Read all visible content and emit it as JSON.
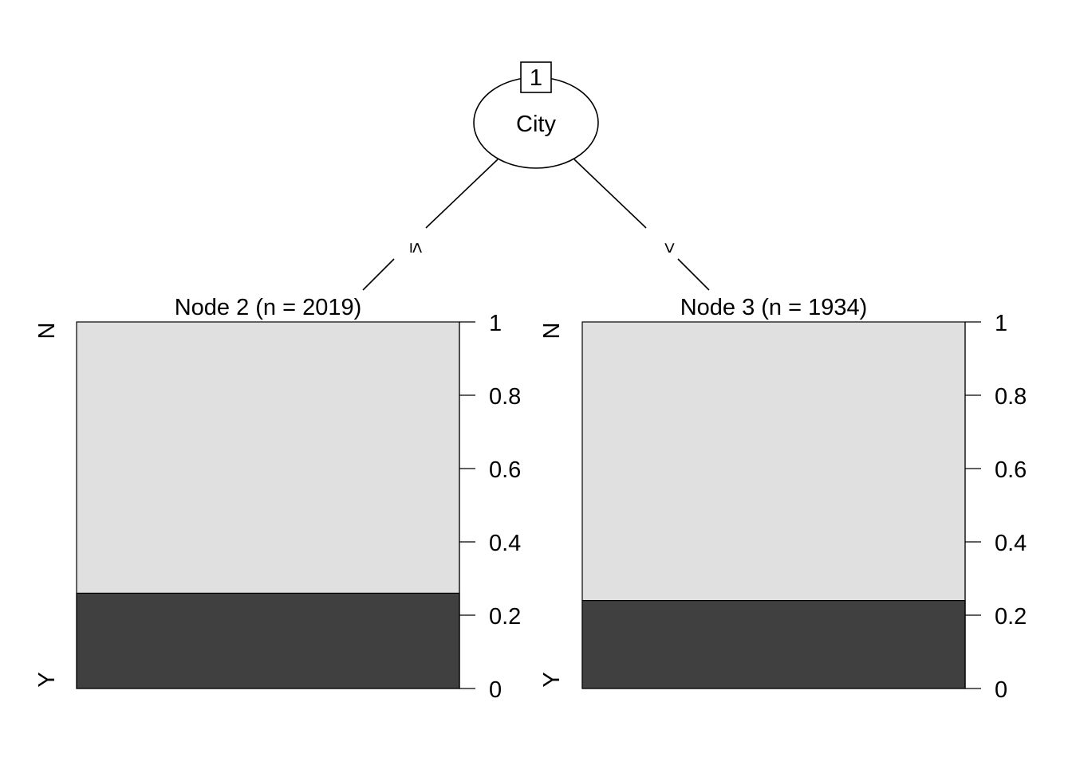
{
  "tree": {
    "root": {
      "id": "1",
      "variable": "City"
    },
    "edges": [
      {
        "label": "≤",
        "to": "2"
      },
      {
        "label": ">",
        "to": "3"
      }
    ],
    "terminals": [
      {
        "id": "2",
        "title": "Node 2 (n = 2019)",
        "categories": [
          "N",
          "Y"
        ],
        "proportion_Y": 0.26
      },
      {
        "id": "3",
        "title": "Node 3 (n = 1934)",
        "categories": [
          "N",
          "Y"
        ],
        "proportion_Y": 0.24
      }
    ],
    "axis_ticks": [
      "0",
      "0.2",
      "0.4",
      "0.6",
      "0.8",
      "1"
    ],
    "colors": {
      "N": "#e0e0e0",
      "Y": "#404040"
    }
  }
}
